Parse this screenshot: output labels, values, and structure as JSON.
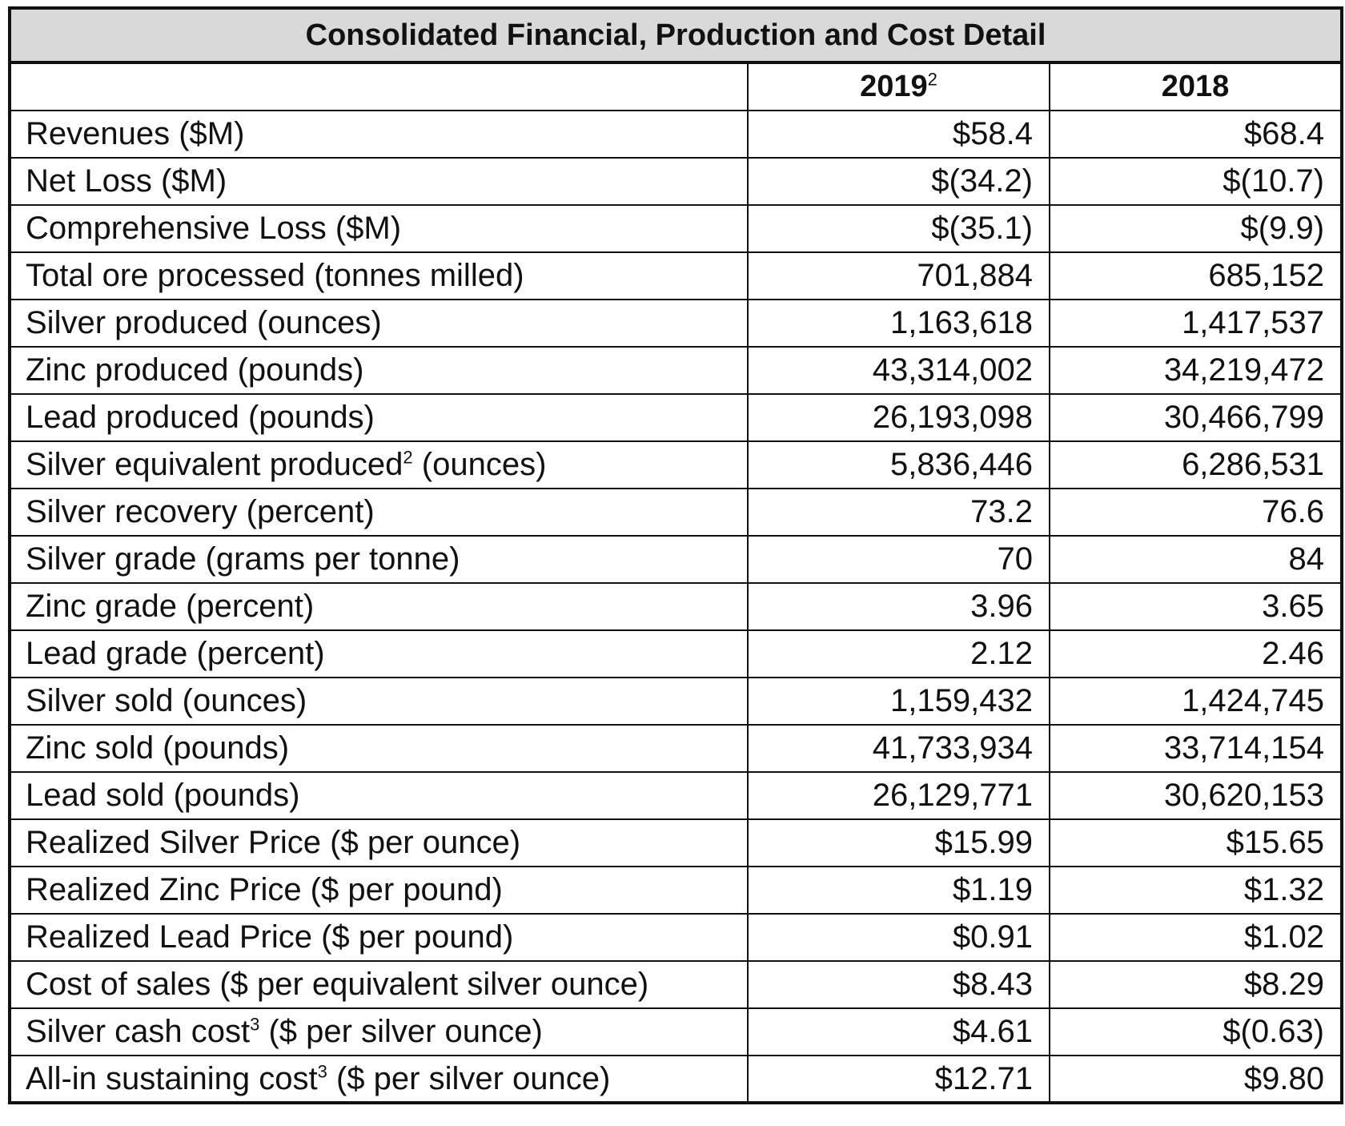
{
  "table": {
    "title": "Consolidated Financial, Production and Cost Detail",
    "columns": [
      {
        "year": "2019",
        "footnote": "2"
      },
      {
        "year": "2018",
        "footnote": ""
      }
    ],
    "rows": [
      {
        "label": "Revenues ($M)",
        "label_after": "",
        "footnote": "",
        "v2019": "$58.4",
        "v2018": "$68.4"
      },
      {
        "label": "Net Loss ($M)",
        "label_after": "",
        "footnote": "",
        "v2019": "$(34.2)",
        "v2018": "$(10.7)"
      },
      {
        "label": "Comprehensive Loss ($M)",
        "label_after": "",
        "footnote": "",
        "v2019": "$(35.1)",
        "v2018": "$(9.9)"
      },
      {
        "label": "Total ore processed (tonnes milled)",
        "label_after": "",
        "footnote": "",
        "v2019": "701,884",
        "v2018": "685,152"
      },
      {
        "label": "Silver produced (ounces)",
        "label_after": "",
        "footnote": "",
        "v2019": "1,163,618",
        "v2018": "1,417,537"
      },
      {
        "label": "Zinc produced (pounds)",
        "label_after": "",
        "footnote": "",
        "v2019": "43,314,002",
        "v2018": "34,219,472"
      },
      {
        "label": "Lead produced (pounds)",
        "label_after": "",
        "footnote": "",
        "v2019": "26,193,098",
        "v2018": "30,466,799"
      },
      {
        "label": "Silver equivalent produced",
        "label_after": " (ounces)",
        "footnote": "2",
        "v2019": "5,836,446",
        "v2018": "6,286,531"
      },
      {
        "label": "Silver recovery (percent)",
        "label_after": "",
        "footnote": "",
        "v2019": "73.2",
        "v2018": "76.6"
      },
      {
        "label": "Silver grade (grams per tonne)",
        "label_after": "",
        "footnote": "",
        "v2019": "70",
        "v2018": "84"
      },
      {
        "label": "Zinc grade (percent)",
        "label_after": "",
        "footnote": "",
        "v2019": "3.96",
        "v2018": "3.65"
      },
      {
        "label": "Lead grade (percent)",
        "label_after": "",
        "footnote": "",
        "v2019": "2.12",
        "v2018": "2.46"
      },
      {
        "label": "Silver sold (ounces)",
        "label_after": "",
        "footnote": "",
        "v2019": "1,159,432",
        "v2018": "1,424,745"
      },
      {
        "label": "Zinc sold (pounds)",
        "label_after": "",
        "footnote": "",
        "v2019": "41,733,934",
        "v2018": "33,714,154"
      },
      {
        "label": "Lead sold (pounds)",
        "label_after": "",
        "footnote": "",
        "v2019": "26,129,771",
        "v2018": "30,620,153"
      },
      {
        "label": "Realized Silver Price ($ per ounce)",
        "label_after": "",
        "footnote": "",
        "v2019": "$15.99",
        "v2018": "$15.65"
      },
      {
        "label": "Realized Zinc Price ($ per pound)",
        "label_after": "",
        "footnote": "",
        "v2019": "$1.19",
        "v2018": "$1.32"
      },
      {
        "label": "Realized Lead Price ($ per pound)",
        "label_after": "",
        "footnote": "",
        "v2019": "$0.91",
        "v2018": "$1.02"
      },
      {
        "label": "Cost of sales ($ per equivalent silver ounce)",
        "label_after": "",
        "footnote": "",
        "v2019": "$8.43",
        "v2018": "$8.29"
      },
      {
        "label": "Silver cash cost",
        "label_after": " ($ per silver ounce)",
        "footnote": "3",
        "v2019": "$4.61",
        "v2018": "$(0.63)"
      },
      {
        "label": "All-in sustaining cost",
        "label_after": " ($ per silver ounce)",
        "footnote": "3",
        "v2019": "$12.71",
        "v2018": "$9.80"
      }
    ]
  }
}
